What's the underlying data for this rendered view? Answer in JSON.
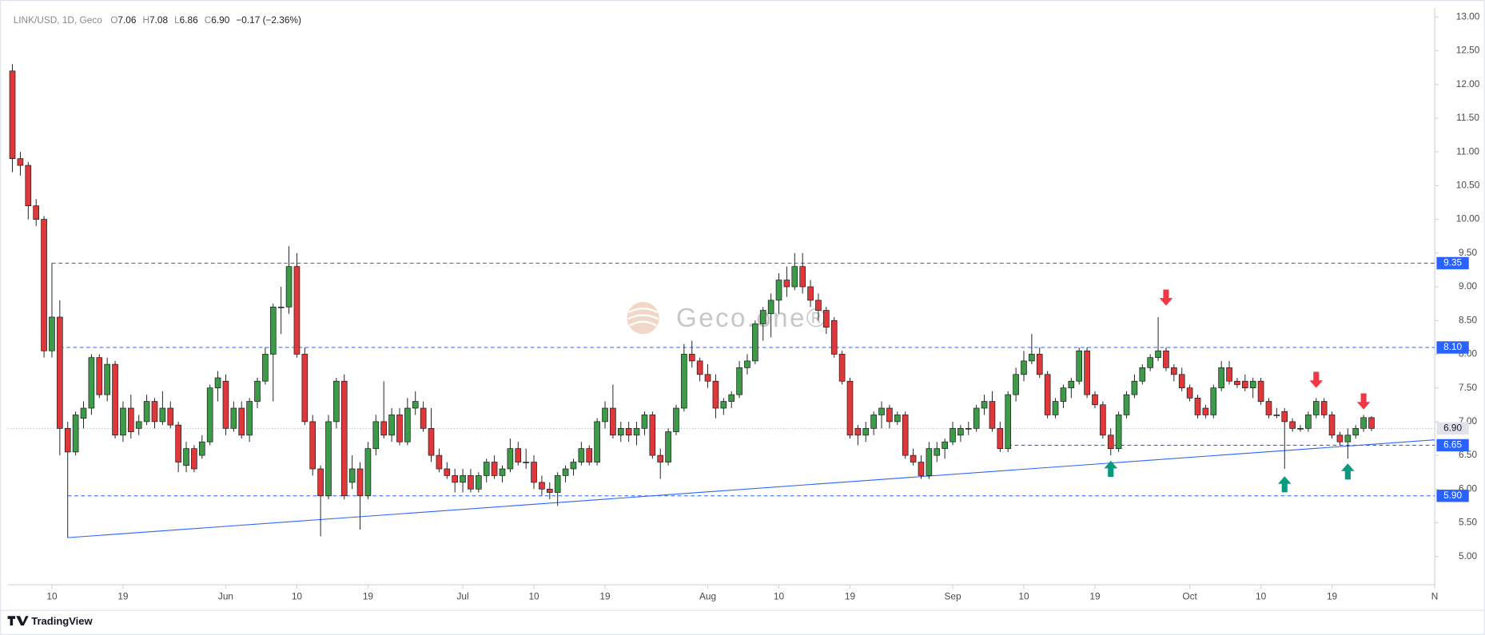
{
  "chart_data": {
    "type": "candlestick",
    "header": {
      "symbol": "LINK/USD, 1D, Geco",
      "fields": [
        {
          "key": "O",
          "value": "7.06"
        },
        {
          "key": "H",
          "value": "7.08"
        },
        {
          "key": "L",
          "value": "6.86"
        },
        {
          "key": "C",
          "value": "6.90"
        }
      ],
      "change": "−0.17 (−2.36%)"
    },
    "watermark": "Geco.one®",
    "footer": "TradingView",
    "up_color": "#3c9a48",
    "down_color": "#e0383a",
    "wick_color": "#1b1b1b",
    "level_color": "#2962ff",
    "xlim": [
      -0.6,
      180
    ],
    "ylim": [
      4.58,
      13.14
    ],
    "xticks": [
      {
        "value": 5,
        "label": "10"
      },
      {
        "value": 14,
        "label": "19"
      },
      {
        "value": 27,
        "label": "Jun"
      },
      {
        "value": 36,
        "label": "10"
      },
      {
        "value": 45,
        "label": "19"
      },
      {
        "value": 57,
        "label": "Jul"
      },
      {
        "value": 66,
        "label": "10"
      },
      {
        "value": 75,
        "label": "19"
      },
      {
        "value": 88,
        "label": "Aug"
      },
      {
        "value": 97,
        "label": "10"
      },
      {
        "value": 106,
        "label": "19"
      },
      {
        "value": 119,
        "label": "Sep"
      },
      {
        "value": 128,
        "label": "10"
      },
      {
        "value": 137,
        "label": "19"
      },
      {
        "value": 149,
        "label": "Oct"
      },
      {
        "value": 158,
        "label": "10"
      },
      {
        "value": 167,
        "label": "19"
      },
      {
        "value": 180,
        "label": "N"
      }
    ],
    "yticks": [
      {
        "value": 5,
        "label": "5.00"
      },
      {
        "value": 5.5,
        "label": "5.50"
      },
      {
        "value": 6,
        "label": "6.00"
      },
      {
        "value": 6.5,
        "label": "6.50"
      },
      {
        "value": 7,
        "label": "7.00"
      },
      {
        "value": 7.5,
        "label": "7.50"
      },
      {
        "value": 8,
        "label": "8.00"
      },
      {
        "value": 8.5,
        "label": "8.50"
      },
      {
        "value": 9,
        "label": "9.00"
      },
      {
        "value": 9.5,
        "label": "9.50"
      },
      {
        "value": 10,
        "label": "10.00"
      },
      {
        "value": 10.5,
        "label": "10.50"
      },
      {
        "value": 11,
        "label": "11.00"
      },
      {
        "value": 11.5,
        "label": "11.50"
      },
      {
        "value": 12,
        "label": "12.00"
      },
      {
        "value": 12.5,
        "label": "12.50"
      },
      {
        "value": 13,
        "label": "13.00"
      }
    ],
    "levels": [
      {
        "value": 9.35,
        "label": "9.35",
        "start": 5
      },
      {
        "value": 8.1,
        "label": "8.10",
        "start": 6
      },
      {
        "value": 6.65,
        "label": "6.65",
        "start": 126
      },
      {
        "value": 5.9,
        "label": "5.90",
        "start": 7
      }
    ],
    "current_price": {
      "value": 6.9,
      "label": "6.90"
    },
    "trendline": {
      "x": [
        7,
        180
      ],
      "y": [
        5.28,
        6.73
      ]
    },
    "arrows": [
      {
        "direction": "up",
        "x": 139,
        "y": 6.42
      },
      {
        "direction": "up",
        "x": 161,
        "y": 6.19
      },
      {
        "direction": "up",
        "x": 169,
        "y": 6.38
      },
      {
        "direction": "down",
        "x": 146,
        "y": 8.72
      },
      {
        "direction": "down",
        "x": 165,
        "y": 7.5
      },
      {
        "direction": "down",
        "x": 171,
        "y": 7.18
      }
    ],
    "candles": [
      [
        12.2,
        12.3,
        10.7,
        10.9
      ],
      [
        10.9,
        11.0,
        10.65,
        10.8
      ],
      [
        10.8,
        10.85,
        10.0,
        10.2
      ],
      [
        10.2,
        10.3,
        9.9,
        10.0
      ],
      [
        10.0,
        10.05,
        7.95,
        8.05
      ],
      [
        8.05,
        9.35,
        7.95,
        8.55
      ],
      [
        8.55,
        8.8,
        6.5,
        6.9
      ],
      [
        6.9,
        7.0,
        5.28,
        6.55
      ],
      [
        6.55,
        7.15,
        6.5,
        7.1
      ],
      [
        7.05,
        7.3,
        6.9,
        7.2
      ],
      [
        7.2,
        8.0,
        7.1,
        7.95
      ],
      [
        7.95,
        8.0,
        7.35,
        7.4
      ],
      [
        7.4,
        7.95,
        7.3,
        7.85
      ],
      [
        7.85,
        7.9,
        6.75,
        6.8
      ],
      [
        6.8,
        7.3,
        6.7,
        7.2
      ],
      [
        7.2,
        7.4,
        6.75,
        6.85
      ],
      [
        6.9,
        7.1,
        6.8,
        7.0
      ],
      [
        7.0,
        7.4,
        6.95,
        7.3
      ],
      [
        7.3,
        7.35,
        6.9,
        7.0
      ],
      [
        7.0,
        7.45,
        6.95,
        7.2
      ],
      [
        7.2,
        7.3,
        6.9,
        6.95
      ],
      [
        6.95,
        7.0,
        6.25,
        6.4
      ],
      [
        6.35,
        6.7,
        6.25,
        6.6
      ],
      [
        6.6,
        6.65,
        6.25,
        6.3
      ],
      [
        6.5,
        6.8,
        6.45,
        6.7
      ],
      [
        6.7,
        7.55,
        6.65,
        7.5
      ],
      [
        7.5,
        7.75,
        7.3,
        7.65
      ],
      [
        7.6,
        7.7,
        6.8,
        6.9
      ],
      [
        6.9,
        7.3,
        6.85,
        7.2
      ],
      [
        7.2,
        7.3,
        6.75,
        6.8
      ],
      [
        6.8,
        7.35,
        6.7,
        7.3
      ],
      [
        7.3,
        7.65,
        7.2,
        7.6
      ],
      [
        7.6,
        8.1,
        7.55,
        8.0
      ],
      [
        8.0,
        8.75,
        7.3,
        8.7
      ],
      [
        8.7,
        9.0,
        8.3,
        8.7
      ],
      [
        8.7,
        9.6,
        8.6,
        9.3
      ],
      [
        9.3,
        9.5,
        7.95,
        8.0
      ],
      [
        8.0,
        8.1,
        6.95,
        7.0
      ],
      [
        7.0,
        7.1,
        6.2,
        6.3
      ],
      [
        6.3,
        6.35,
        5.3,
        5.9
      ],
      [
        5.9,
        7.1,
        5.85,
        7.0
      ],
      [
        7.0,
        7.65,
        6.9,
        7.6
      ],
      [
        7.6,
        7.7,
        5.85,
        5.9
      ],
      [
        6.1,
        6.5,
        6.0,
        6.3
      ],
      [
        6.3,
        6.4,
        5.4,
        5.9
      ],
      [
        5.9,
        6.7,
        5.85,
        6.6
      ],
      [
        6.6,
        7.1,
        6.5,
        7.0
      ],
      [
        7.0,
        7.6,
        6.75,
        6.8
      ],
      [
        6.8,
        7.2,
        6.7,
        7.1
      ],
      [
        7.1,
        7.2,
        6.65,
        6.7
      ],
      [
        6.7,
        7.35,
        6.65,
        7.2
      ],
      [
        7.2,
        7.45,
        7.1,
        7.3
      ],
      [
        7.2,
        7.3,
        6.85,
        6.9
      ],
      [
        6.9,
        7.2,
        6.4,
        6.5
      ],
      [
        6.5,
        6.6,
        6.25,
        6.3
      ],
      [
        6.3,
        6.4,
        6.15,
        6.2
      ],
      [
        6.2,
        6.3,
        5.95,
        6.1
      ],
      [
        6.1,
        6.3,
        5.95,
        6.2
      ],
      [
        6.2,
        6.3,
        5.95,
        6.0
      ],
      [
        6.0,
        6.25,
        5.95,
        6.2
      ],
      [
        6.2,
        6.45,
        6.1,
        6.4
      ],
      [
        6.4,
        6.5,
        6.15,
        6.2
      ],
      [
        6.2,
        6.35,
        6.1,
        6.3
      ],
      [
        6.3,
        6.75,
        6.25,
        6.6
      ],
      [
        6.6,
        6.7,
        6.35,
        6.4
      ],
      [
        6.4,
        6.6,
        6.3,
        6.4
      ],
      [
        6.4,
        6.5,
        6.0,
        6.1
      ],
      [
        6.1,
        6.2,
        5.9,
        6.0
      ],
      [
        6.0,
        6.1,
        5.85,
        5.95
      ],
      [
        5.95,
        6.25,
        5.75,
        6.2
      ],
      [
        6.2,
        6.35,
        6.1,
        6.3
      ],
      [
        6.3,
        6.45,
        6.2,
        6.4
      ],
      [
        6.4,
        6.7,
        6.35,
        6.6
      ],
      [
        6.6,
        6.65,
        6.35,
        6.4
      ],
      [
        6.4,
        7.05,
        6.35,
        7.0
      ],
      [
        7.0,
        7.3,
        6.9,
        7.2
      ],
      [
        7.2,
        7.55,
        6.75,
        6.8
      ],
      [
        6.8,
        7.0,
        6.7,
        6.9
      ],
      [
        6.9,
        7.0,
        6.7,
        6.8
      ],
      [
        6.8,
        7.0,
        6.65,
        6.9
      ],
      [
        6.9,
        7.15,
        6.8,
        7.1
      ],
      [
        7.1,
        7.15,
        6.45,
        6.5
      ],
      [
        6.5,
        6.6,
        6.15,
        6.4
      ],
      [
        6.4,
        6.9,
        6.35,
        6.85
      ],
      [
        6.85,
        7.25,
        6.8,
        7.2
      ],
      [
        7.2,
        8.15,
        7.15,
        8.0
      ],
      [
        8.0,
        8.2,
        7.8,
        7.9
      ],
      [
        7.9,
        7.95,
        7.6,
        7.7
      ],
      [
        7.7,
        7.85,
        7.5,
        7.6
      ],
      [
        7.6,
        7.7,
        7.05,
        7.2
      ],
      [
        7.2,
        7.35,
        7.1,
        7.3
      ],
      [
        7.3,
        7.45,
        7.2,
        7.4
      ],
      [
        7.4,
        7.9,
        7.35,
        7.8
      ],
      [
        7.8,
        8.0,
        7.7,
        7.9
      ],
      [
        7.9,
        8.5,
        7.85,
        8.45
      ],
      [
        8.45,
        8.7,
        8.2,
        8.65
      ],
      [
        8.6,
        8.9,
        8.25,
        8.8
      ],
      [
        8.8,
        9.2,
        8.6,
        9.1
      ],
      [
        9.1,
        9.3,
        8.85,
        9.0
      ],
      [
        9.0,
        9.5,
        8.95,
        9.3
      ],
      [
        9.3,
        9.5,
        8.9,
        9.0
      ],
      [
        9.0,
        9.1,
        8.7,
        8.8
      ],
      [
        8.8,
        8.9,
        8.5,
        8.65
      ],
      [
        8.65,
        8.7,
        8.3,
        8.4
      ],
      [
        8.5,
        8.55,
        7.95,
        8.0
      ],
      [
        8.0,
        8.05,
        7.55,
        7.6
      ],
      [
        7.6,
        7.65,
        6.75,
        6.8
      ],
      [
        6.9,
        6.95,
        6.65,
        6.8
      ],
      [
        6.8,
        7.0,
        6.7,
        6.9
      ],
      [
        6.9,
        7.15,
        6.8,
        7.1
      ],
      [
        7.1,
        7.3,
        6.9,
        7.2
      ],
      [
        7.2,
        7.25,
        6.9,
        7.0
      ],
      [
        7.0,
        7.15,
        6.95,
        7.1
      ],
      [
        7.1,
        7.15,
        6.45,
        6.5
      ],
      [
        6.5,
        6.6,
        6.35,
        6.4
      ],
      [
        6.4,
        6.5,
        6.15,
        6.2
      ],
      [
        6.2,
        6.7,
        6.15,
        6.6
      ],
      [
        6.5,
        6.7,
        6.4,
        6.6
      ],
      [
        6.6,
        6.75,
        6.45,
        6.7
      ],
      [
        6.7,
        7.0,
        6.65,
        6.9
      ],
      [
        6.8,
        6.95,
        6.7,
        6.9
      ],
      [
        6.9,
        7.0,
        6.8,
        6.9
      ],
      [
        6.9,
        7.25,
        6.85,
        7.2
      ],
      [
        7.2,
        7.4,
        7.1,
        7.3
      ],
      [
        7.3,
        7.45,
        6.85,
        6.9
      ],
      [
        6.9,
        7.0,
        6.55,
        6.6
      ],
      [
        6.6,
        7.45,
        6.55,
        7.4
      ],
      [
        7.4,
        7.8,
        7.3,
        7.7
      ],
      [
        7.7,
        8.05,
        7.6,
        7.9
      ],
      [
        7.9,
        8.3,
        7.85,
        8.0
      ],
      [
        8.0,
        8.1,
        7.65,
        7.7
      ],
      [
        7.7,
        7.75,
        7.05,
        7.1
      ],
      [
        7.1,
        7.35,
        7.05,
        7.3
      ],
      [
        7.3,
        7.55,
        7.2,
        7.5
      ],
      [
        7.5,
        7.65,
        7.35,
        7.6
      ],
      [
        7.6,
        8.1,
        7.55,
        8.05
      ],
      [
        8.05,
        8.1,
        7.35,
        7.4
      ],
      [
        7.4,
        7.45,
        7.2,
        7.25
      ],
      [
        7.25,
        7.3,
        6.75,
        6.8
      ],
      [
        6.8,
        6.9,
        6.5,
        6.6
      ],
      [
        6.6,
        7.15,
        6.55,
        7.1
      ],
      [
        7.1,
        7.45,
        7.05,
        7.4
      ],
      [
        7.4,
        7.7,
        7.35,
        7.6
      ],
      [
        7.6,
        7.85,
        7.55,
        7.8
      ],
      [
        7.8,
        8.0,
        7.75,
        7.95
      ],
      [
        7.95,
        8.55,
        7.9,
        8.05
      ],
      [
        8.05,
        8.1,
        7.75,
        7.8
      ],
      [
        7.8,
        7.85,
        7.6,
        7.7
      ],
      [
        7.7,
        7.8,
        7.45,
        7.5
      ],
      [
        7.5,
        7.55,
        7.3,
        7.35
      ],
      [
        7.35,
        7.4,
        7.05,
        7.1
      ],
      [
        7.2,
        7.25,
        7.05,
        7.1
      ],
      [
        7.1,
        7.55,
        7.05,
        7.5
      ],
      [
        7.5,
        7.9,
        7.45,
        7.8
      ],
      [
        7.8,
        7.9,
        7.55,
        7.6
      ],
      [
        7.6,
        7.65,
        7.5,
        7.55
      ],
      [
        7.6,
        7.7,
        7.45,
        7.5
      ],
      [
        7.5,
        7.65,
        7.35,
        7.6
      ],
      [
        7.6,
        7.65,
        7.25,
        7.3
      ],
      [
        7.3,
        7.35,
        7.05,
        7.1
      ],
      [
        7.1,
        7.2,
        7.05,
        7.1
      ],
      [
        7.15,
        7.2,
        6.3,
        7.0
      ],
      [
        7.0,
        7.05,
        6.85,
        6.9
      ],
      [
        6.9,
        6.95,
        6.85,
        6.9
      ],
      [
        6.9,
        7.15,
        6.85,
        7.1
      ],
      [
        7.1,
        7.35,
        7.05,
        7.3
      ],
      [
        7.3,
        7.35,
        7.05,
        7.1
      ],
      [
        7.1,
        7.15,
        6.75,
        6.8
      ],
      [
        6.8,
        6.85,
        6.65,
        6.7
      ],
      [
        6.7,
        6.9,
        6.45,
        6.8
      ],
      [
        6.8,
        6.95,
        6.75,
        6.9
      ],
      [
        6.9,
        7.1,
        6.85,
        7.06
      ],
      [
        7.06,
        7.08,
        6.86,
        6.9
      ]
    ]
  }
}
